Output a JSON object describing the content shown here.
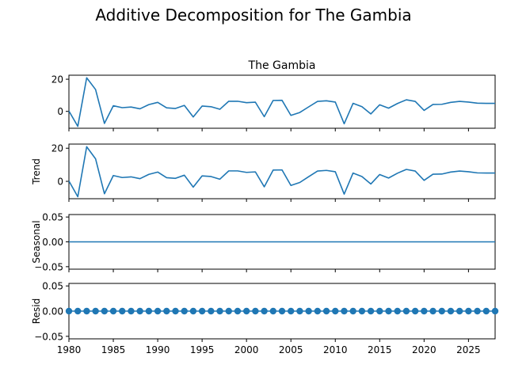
{
  "suptitle": "Additive Decomposition for The Gambia",
  "line_color": "#1f77b4",
  "chart_data": [
    {
      "type": "line",
      "title": "The Gambia",
      "ylabel": "",
      "xlim": [
        1980,
        2028
      ],
      "ylim": [
        -10.5,
        22.5
      ],
      "yticks": [
        0,
        20
      ],
      "show_xticklabels": false,
      "x": [
        1980,
        1981,
        1982,
        1983,
        1984,
        1985,
        1986,
        1987,
        1988,
        1989,
        1990,
        1991,
        1992,
        1993,
        1994,
        1995,
        1996,
        1997,
        1998,
        1999,
        2000,
        2001,
        2002,
        2003,
        2004,
        2005,
        2006,
        2007,
        2008,
        2009,
        2010,
        2011,
        2012,
        2013,
        2014,
        2015,
        2016,
        2017,
        2018,
        2019,
        2020,
        2021,
        2022,
        2023,
        2024,
        2025,
        2026,
        2027,
        2028
      ],
      "values": [
        0.2,
        -9.3,
        20.9,
        13.6,
        -7.5,
        3.5,
        2.3,
        2.7,
        1.6,
        4.2,
        5.6,
        2.2,
        1.8,
        3.7,
        -3.5,
        3.3,
        2.9,
        1.3,
        6.3,
        6.3,
        5.4,
        5.7,
        -3.3,
        6.8,
        6.9,
        -2.5,
        -0.7,
        2.8,
        6.2,
        6.6,
        5.8,
        -7.7,
        5.0,
        2.9,
        -1.6,
        4.1,
        2.0,
        4.9,
        7.2,
        6.2,
        0.6,
        4.3,
        4.4,
        5.6,
        6.2,
        5.8,
        5.1,
        5.0,
        5.0
      ],
      "marker": false
    },
    {
      "type": "line",
      "title": "",
      "ylabel": "Trend",
      "xlim": [
        1980,
        2028
      ],
      "ylim": [
        -10.5,
        22.5
      ],
      "yticks": [
        0,
        20
      ],
      "show_xticklabels": false,
      "x": [
        1980,
        1981,
        1982,
        1983,
        1984,
        1985,
        1986,
        1987,
        1988,
        1989,
        1990,
        1991,
        1992,
        1993,
        1994,
        1995,
        1996,
        1997,
        1998,
        1999,
        2000,
        2001,
        2002,
        2003,
        2004,
        2005,
        2006,
        2007,
        2008,
        2009,
        2010,
        2011,
        2012,
        2013,
        2014,
        2015,
        2016,
        2017,
        2018,
        2019,
        2020,
        2021,
        2022,
        2023,
        2024,
        2025,
        2026,
        2027,
        2028
      ],
      "values": [
        0.2,
        -9.3,
        20.9,
        13.6,
        -7.5,
        3.5,
        2.3,
        2.7,
        1.6,
        4.2,
        5.6,
        2.2,
        1.8,
        3.7,
        -3.5,
        3.3,
        2.9,
        1.3,
        6.3,
        6.3,
        5.4,
        5.7,
        -3.3,
        6.8,
        6.9,
        -2.5,
        -0.7,
        2.8,
        6.2,
        6.6,
        5.8,
        -7.7,
        5.0,
        2.9,
        -1.6,
        4.1,
        2.0,
        4.9,
        7.2,
        6.2,
        0.6,
        4.3,
        4.4,
        5.6,
        6.2,
        5.8,
        5.1,
        5.0,
        5.0
      ],
      "marker": false
    },
    {
      "type": "line",
      "title": "",
      "ylabel": "Seasonal",
      "xlim": [
        1980,
        2028
      ],
      "ylim": [
        -0.055,
        0.055
      ],
      "yticks": [
        -0.05,
        0.0,
        0.05
      ],
      "ytick_labels": [
        "−0.05",
        "0.00",
        "0.05"
      ],
      "show_xticklabels": false,
      "x": [
        1980,
        2028
      ],
      "values": [
        0.0,
        0.0
      ],
      "marker": false
    },
    {
      "type": "scatter",
      "title": "",
      "ylabel": "Resid",
      "xlim": [
        1980,
        2028
      ],
      "ylim": [
        -0.055,
        0.055
      ],
      "yticks": [
        -0.05,
        0.0,
        0.05
      ],
      "ytick_labels": [
        "−0.05",
        "0.00",
        "0.05"
      ],
      "show_xticklabels": true,
      "xticks": [
        1980,
        1985,
        1990,
        1995,
        2000,
        2005,
        2010,
        2015,
        2020,
        2025
      ],
      "x": [
        1980,
        1981,
        1982,
        1983,
        1984,
        1985,
        1986,
        1987,
        1988,
        1989,
        1990,
        1991,
        1992,
        1993,
        1994,
        1995,
        1996,
        1997,
        1998,
        1999,
        2000,
        2001,
        2002,
        2003,
        2004,
        2005,
        2006,
        2007,
        2008,
        2009,
        2010,
        2011,
        2012,
        2013,
        2014,
        2015,
        2016,
        2017,
        2018,
        2019,
        2020,
        2021,
        2022,
        2023,
        2024,
        2025,
        2026,
        2027,
        2028
      ],
      "values": [
        0,
        0,
        0,
        0,
        0,
        0,
        0,
        0,
        0,
        0,
        0,
        0,
        0,
        0,
        0,
        0,
        0,
        0,
        0,
        0,
        0,
        0,
        0,
        0,
        0,
        0,
        0,
        0,
        0,
        0,
        0,
        0,
        0,
        0,
        0,
        0,
        0,
        0,
        0,
        0,
        0,
        0,
        0,
        0,
        0,
        0,
        0,
        0,
        0
      ],
      "marker": true
    }
  ]
}
